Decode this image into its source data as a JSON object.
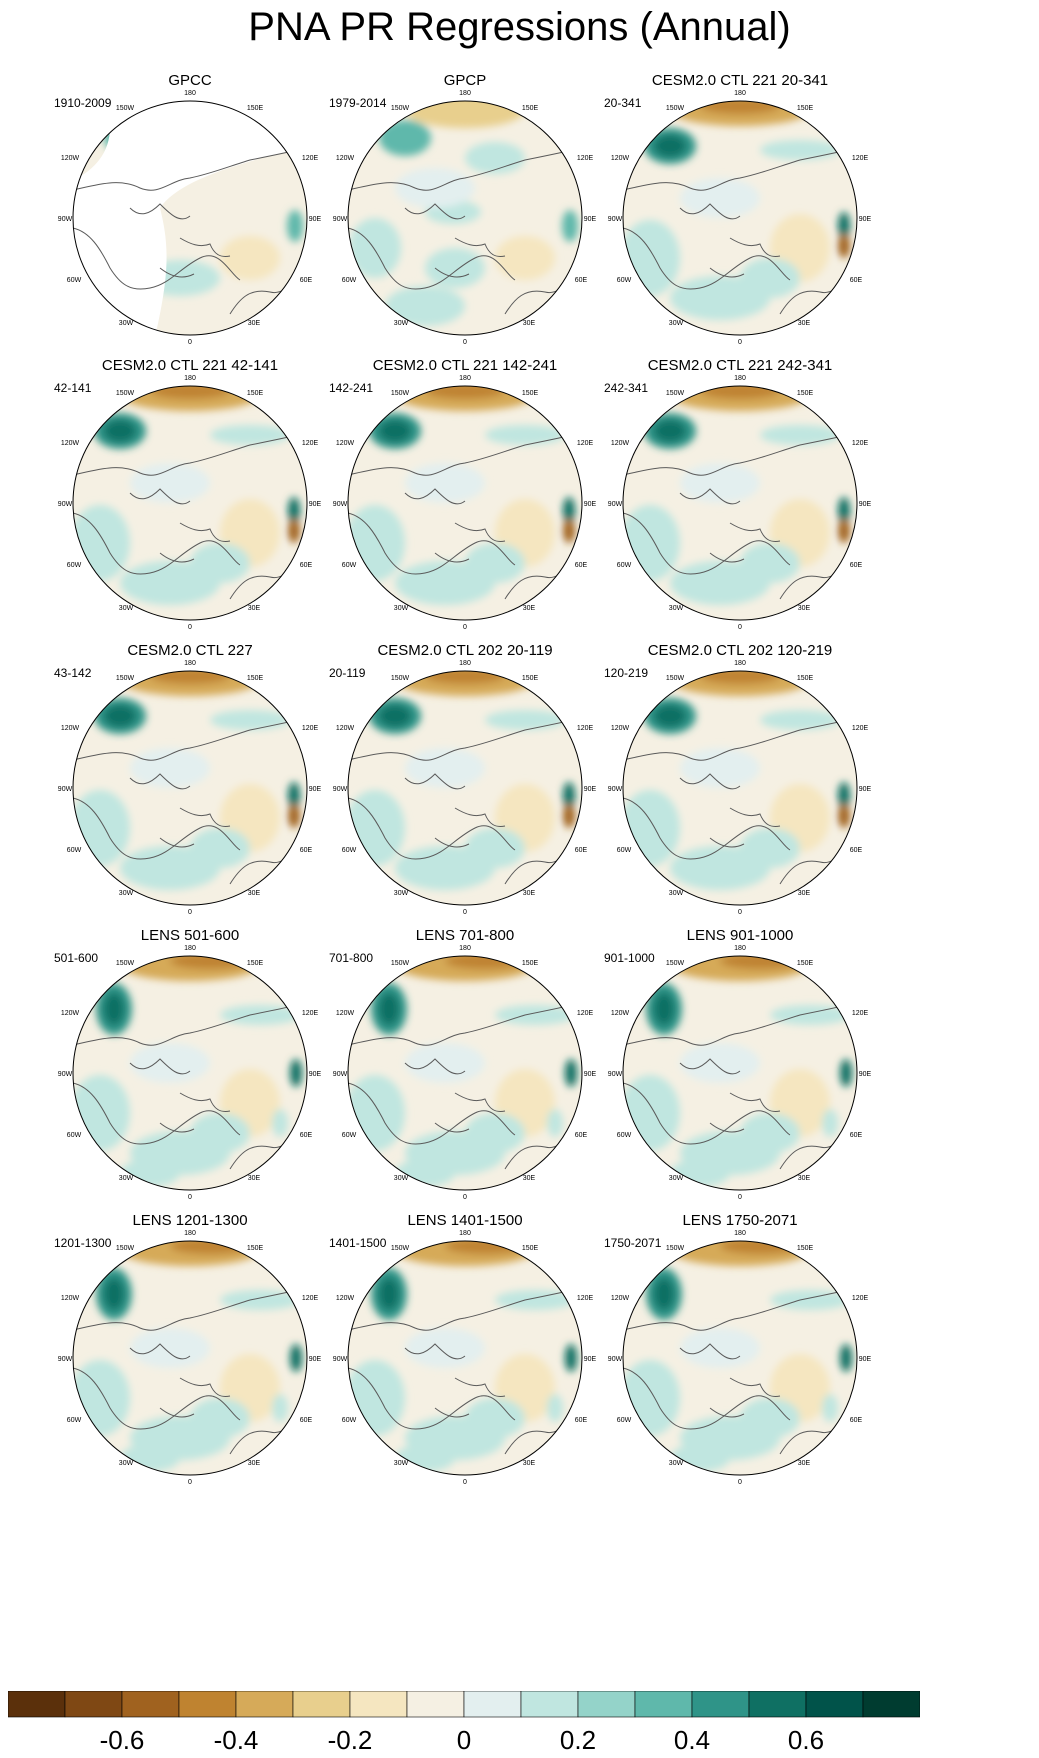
{
  "chart_data": {
    "type": "heatmap",
    "title": "PNA PR Regressions (Annual)",
    "projection": "polar stereographic (Northern Hemisphere)",
    "longitude_labels": [
      "180",
      "150W",
      "150E",
      "120W",
      "120E",
      "90W",
      "90E",
      "60W",
      "60E",
      "30W",
      "30E",
      "0"
    ],
    "colorbar": {
      "levels": [
        -0.7,
        -0.6,
        -0.5,
        -0.4,
        -0.3,
        -0.2,
        -0.1,
        0,
        0.1,
        0.2,
        0.3,
        0.4,
        0.5,
        0.6,
        0.7
      ],
      "colors": [
        "#5b300b",
        "#7f4814",
        "#a0621f",
        "#bf8330",
        "#d6aa59",
        "#e8cf8d",
        "#f5e6c0",
        "#f5f0e3",
        "#e3efef",
        "#c0e6e0",
        "#94d3c9",
        "#5fb8ab",
        "#2f9488",
        "#0f7063",
        "#01534a",
        "#003c30"
      ],
      "tick_labels": [
        "-0.6",
        "-0.4",
        "-0.2",
        "0",
        "0.2",
        "0.4",
        "0.6"
      ]
    },
    "panels": [
      {
        "title": "GPCC",
        "range": "1910-2009",
        "pattern": "gpcc"
      },
      {
        "title": "GPCP",
        "range": "1979-2014",
        "pattern": "obs"
      },
      {
        "title": "CESM2.0 CTL 221 20-341",
        "range": "20-341",
        "pattern": "model"
      },
      {
        "title": "CESM2.0 CTL 221 42-141",
        "range": "42-141",
        "pattern": "model"
      },
      {
        "title": "CESM2.0 CTL 221 142-241",
        "range": "142-241",
        "pattern": "model"
      },
      {
        "title": "CESM2.0 CTL 221 242-341",
        "range": "242-341",
        "pattern": "model"
      },
      {
        "title": "CESM2.0 CTL 227",
        "range": "43-142",
        "pattern": "model"
      },
      {
        "title": "CESM2.0 CTL 202 20-119",
        "range": "20-119",
        "pattern": "model"
      },
      {
        "title": "CESM2.0 CTL 202 120-219",
        "range": "120-219",
        "pattern": "model"
      },
      {
        "title": "LENS 501-600",
        "range": "501-600",
        "pattern": "lens"
      },
      {
        "title": "LENS 701-800",
        "range": "701-800",
        "pattern": "lens"
      },
      {
        "title": "LENS 901-1000",
        "range": "901-1000",
        "pattern": "lens"
      },
      {
        "title": "LENS 1201-1300",
        "range": "1201-1300",
        "pattern": "lens"
      },
      {
        "title": "LENS 1401-1500",
        "range": "1401-1500",
        "pattern": "lens"
      },
      {
        "title": "LENS 1750-2071",
        "range": "1750-2071",
        "pattern": "lens"
      }
    ]
  }
}
